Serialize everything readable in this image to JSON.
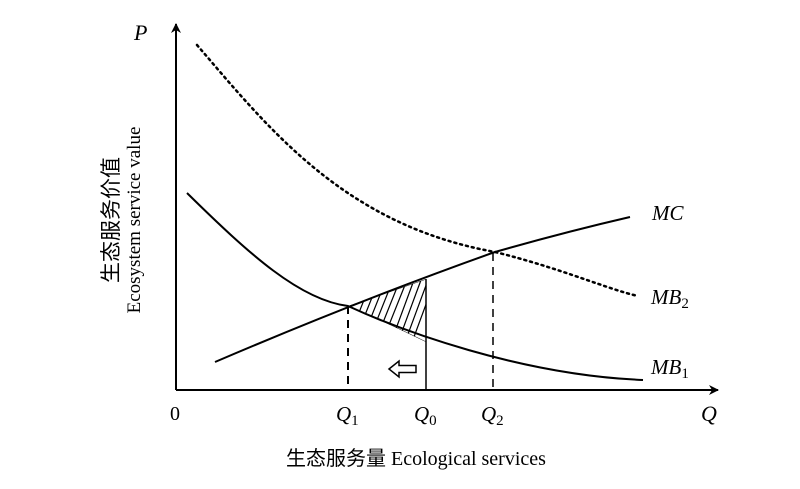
{
  "axes": {
    "y_symbol": "P",
    "x_symbol": "Q",
    "origin": "0",
    "y_label_cn": "生态服务价值",
    "y_label_en": "Ecosystem service value",
    "x_label": "生态服务量 Ecological services"
  },
  "curves": {
    "mc": {
      "label": "MC"
    },
    "mb2": {
      "label": "MB",
      "subscript": "2"
    },
    "mb1": {
      "label": "MB",
      "subscript": "1"
    }
  },
  "quantities": {
    "q1": {
      "label": "Q",
      "subscript": "1"
    },
    "q0": {
      "label": "Q",
      "subscript": "0"
    },
    "q2": {
      "label": "Q",
      "subscript": "2"
    }
  },
  "colors": {
    "ink": "#000000",
    "background": "#ffffff"
  },
  "icons": {
    "shift_arrow": "left-arrow-icon"
  }
}
